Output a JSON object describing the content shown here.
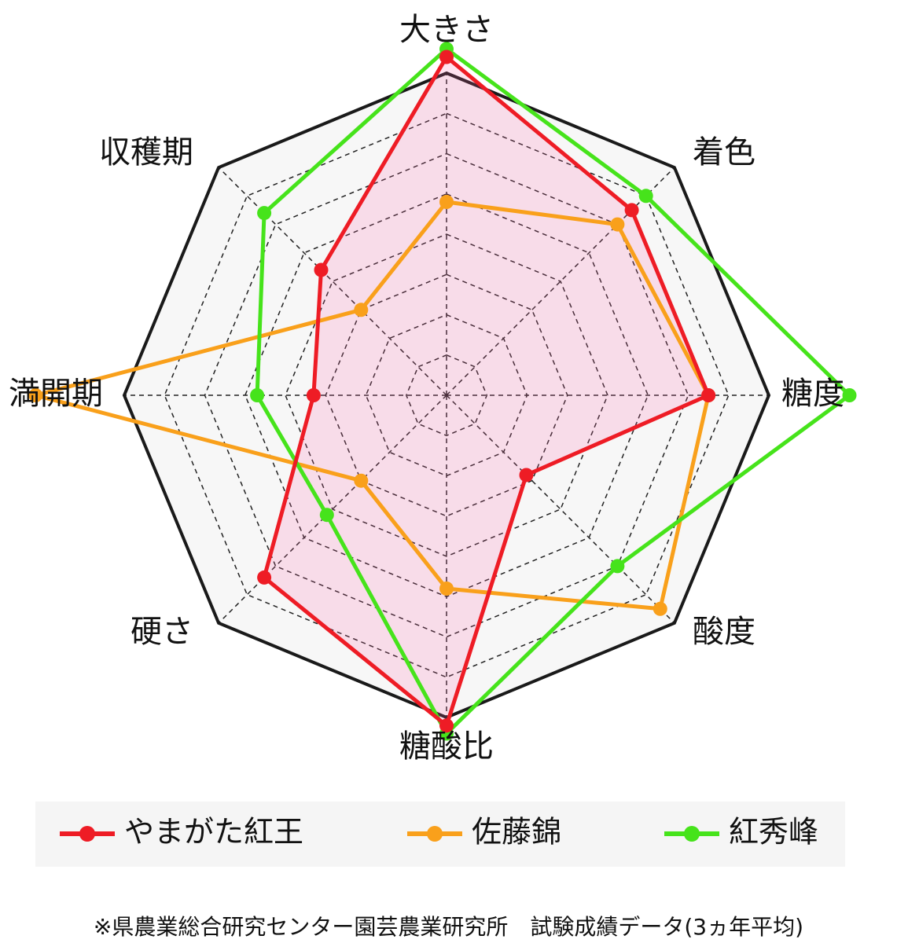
{
  "chart_data": {
    "type": "radar",
    "axes": [
      "大きさ",
      "着色",
      "糖度",
      "酸度",
      "糖酸比",
      "硬さ",
      "満開期",
      "収穫期"
    ],
    "range": [
      0,
      8
    ],
    "series": [
      {
        "name": "やまがた紅王",
        "color": "#ee1c25",
        "values": [
          8.4,
          6.5,
          6.5,
          2.8,
          8.2,
          6.4,
          3.3,
          4.4
        ],
        "fill": true
      },
      {
        "name": "佐藤錦",
        "color": "#f9a01b",
        "values": [
          4.8,
          6.0,
          6.5,
          7.5,
          4.8,
          3.0,
          10.2,
          3.0
        ],
        "fill": false
      },
      {
        "name": "紅秀峰",
        "color": "#46e31b",
        "values": [
          8.6,
          7.0,
          10.0,
          6.0,
          8.4,
          4.2,
          4.7,
          6.4
        ],
        "fill": false
      }
    ],
    "grid": "dashed rings at each step",
    "legend_position": "bottom"
  },
  "footnote": "※県農業総合研究センター園芸農業研究所　試験成績データ(3ヵ年平均)"
}
